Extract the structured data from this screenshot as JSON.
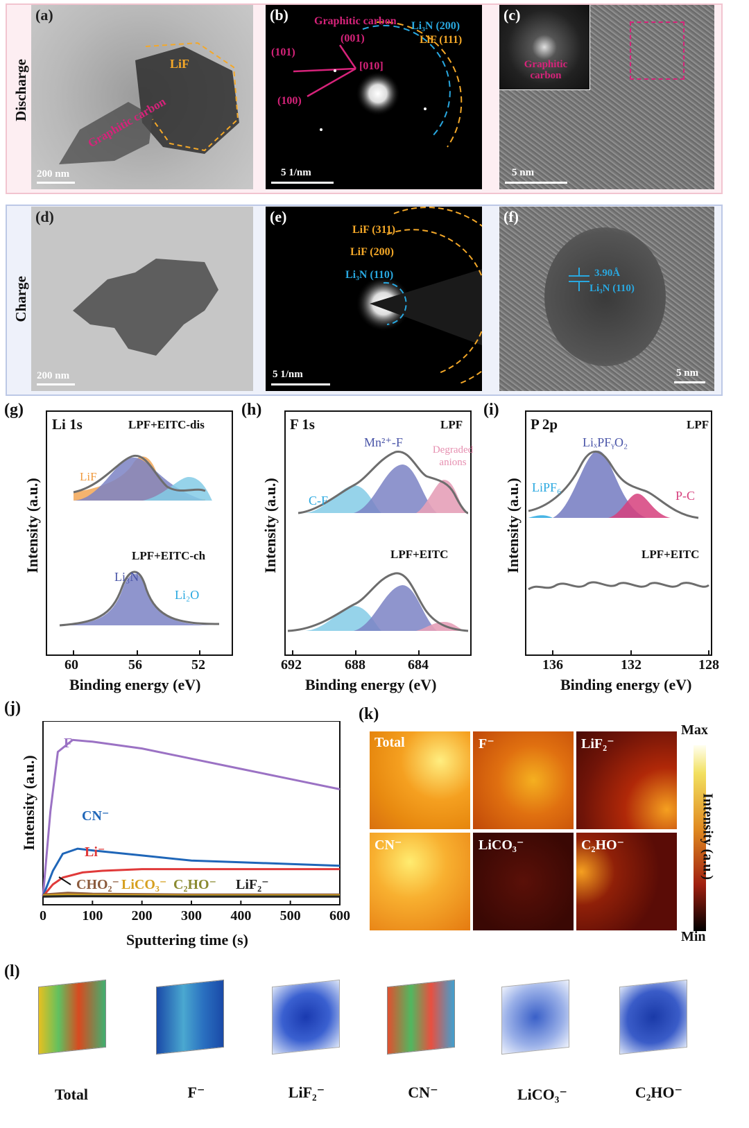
{
  "panels": {
    "a": "(a)",
    "b": "(b)",
    "c": "(c)",
    "d": "(d)",
    "e": "(e)",
    "f": "(f)",
    "g": "(g)",
    "h": "(h)",
    "i": "(i)",
    "j": "(j)",
    "k": "(k)",
    "l": "(l)"
  },
  "rows": {
    "discharge": "Discharge",
    "charge": "Charge"
  },
  "tem": {
    "a_lif": "LiF",
    "a_graphitic": "Graphitic carbon",
    "a_scale": "200 nm",
    "b_title": "Graphitic carbon",
    "b_001": "(001)",
    "b_101": "(101)",
    "b_010": "[010]",
    "b_100": "(100)",
    "b_li3n": "Li₃N (200)",
    "b_lif": "LiF (111)",
    "b_scale": "5 1/nm",
    "c_fft": "Graphitic carbon",
    "c_scale": "5 nm",
    "d_scale": "200 nm",
    "e_lif311": "LiF (311)",
    "e_lif200": "LiF (200)",
    "e_li3n": "Li₃N (110)",
    "e_scale": "5 1/nm",
    "f_d": "3.90Å",
    "f_li3n": "Li₃N (110)",
    "f_scale": "5 nm"
  },
  "xps": {
    "ylabel": "Intensity (a.u.)",
    "xlabel": "Binding energy (eV)",
    "g": {
      "core": "Li 1s",
      "top": "LPF+EITC-dis",
      "bottom": "LPF+EITC-ch",
      "p1": "LiF",
      "p2": "Li₃N",
      "p3": "Li₂O",
      "ticks": [
        "60",
        "56",
        "52"
      ]
    },
    "h": {
      "core": "F 1s",
      "top": "LPF",
      "bottom": "LPF+EITC",
      "p1": "C-F",
      "p2": "Mn²⁺-F",
      "p3": "Degraded anions",
      "ticks": [
        "692",
        "688",
        "684"
      ]
    },
    "i": {
      "core": "P 2p",
      "top": "LPF",
      "bottom": "LPF+EITC",
      "p1": "LiPF₆",
      "p2": "LiₓPFᵧO₂",
      "p3": "P-C",
      "ticks": [
        "136",
        "132",
        "128"
      ]
    },
    "colors": {
      "blue_peak": "#7b82c4",
      "cyan_peak": "#84cbe6",
      "orange_peak": "#f09a3e",
      "pink_peak": "#e6a0b8",
      "magenta_peak": "#d63f7d",
      "data": "#bdbdbd",
      "fit": "#6d6d6d"
    }
  },
  "chart_data": {
    "type": "line",
    "title": "",
    "xlabel": "Sputtering time (s)",
    "ylabel": "Intensity (a.u.)",
    "xlim": [
      0,
      600
    ],
    "xticks": [
      "0",
      "100",
      "200",
      "300",
      "400",
      "500",
      "600"
    ],
    "series": [
      {
        "name": "F⁻",
        "color": "#9b72c4",
        "x": [
          0,
          15,
          30,
          60,
          100,
          200,
          300,
          400,
          500,
          600
        ],
        "y": [
          0.05,
          0.55,
          0.9,
          0.97,
          0.96,
          0.92,
          0.86,
          0.8,
          0.74,
          0.68
        ]
      },
      {
        "name": "CN⁻",
        "color": "#1f66b8",
        "x": [
          0,
          20,
          40,
          70,
          100,
          200,
          300,
          400,
          500,
          600
        ],
        "y": [
          0.05,
          0.2,
          0.3,
          0.33,
          0.32,
          0.29,
          0.26,
          0.25,
          0.24,
          0.23
        ]
      },
      {
        "name": "Li⁻",
        "color": "#e03a3a",
        "x": [
          0,
          20,
          40,
          80,
          120,
          200,
          300,
          400,
          500,
          600
        ],
        "y": [
          0.05,
          0.12,
          0.16,
          0.19,
          0.2,
          0.21,
          0.21,
          0.21,
          0.21,
          0.21
        ]
      },
      {
        "name": "CHO₂⁻",
        "color": "#8b5a3c",
        "x": [
          0,
          50,
          100,
          300,
          600
        ],
        "y": [
          0.06,
          0.07,
          0.065,
          0.06,
          0.06
        ]
      },
      {
        "name": "LiCO₃⁻",
        "color": "#d6a020",
        "x": [
          0,
          50,
          100,
          300,
          600
        ],
        "y": [
          0.055,
          0.06,
          0.058,
          0.055,
          0.055
        ]
      },
      {
        "name": "C₂HO⁻",
        "color": "#8a8a30",
        "x": [
          0,
          50,
          100,
          300,
          600
        ],
        "y": [
          0.05,
          0.052,
          0.052,
          0.05,
          0.05
        ]
      },
      {
        "name": "LiF₂⁻",
        "color": "#222222",
        "x": [
          0,
          50,
          100,
          300,
          600
        ],
        "y": [
          0.048,
          0.05,
          0.05,
          0.048,
          0.048
        ]
      }
    ]
  },
  "k": {
    "maps": [
      "Total",
      "F⁻",
      "LiF₂⁻",
      "CN⁻",
      "LiCO₃⁻",
      "C₂HO⁻"
    ],
    "cb_max": "Max",
    "cb_min": "Min",
    "cb_label": "Intensity (a.u.)"
  },
  "l": {
    "cubes": [
      "Total",
      "F⁻",
      "LiF₂⁻",
      "CN⁻",
      "LiCO₃⁻",
      "C₂HO⁻"
    ]
  }
}
